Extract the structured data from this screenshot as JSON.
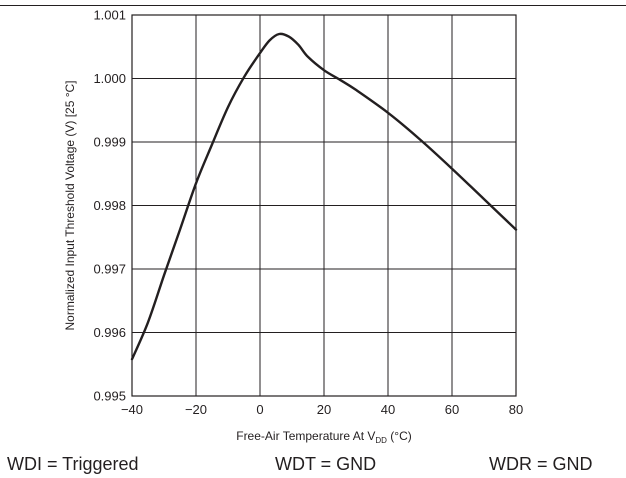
{
  "chart_data": {
    "type": "line",
    "title": "",
    "xlabel_main": "Free-Air Temperature At V",
    "xlabel_sub": "DD",
    "xlabel_unit": " (°C)",
    "ylabel": "Normalized Input Threshold Voltage (V) [25 °C]",
    "xlim": [
      -40,
      80
    ],
    "ylim": [
      0.995,
      1.001
    ],
    "x_ticks": [
      -40,
      -20,
      0,
      20,
      40,
      60,
      80
    ],
    "x_tick_labels": [
      "−40",
      "−20",
      "0",
      "20",
      "40",
      "60",
      "80"
    ],
    "y_ticks": [
      0.995,
      0.996,
      0.997,
      0.998,
      0.999,
      1.0,
      1.001
    ],
    "y_tick_labels": [
      "0.995",
      "0.996",
      "0.997",
      "0.998",
      "0.999",
      "1.000",
      "1.001"
    ],
    "grid": true,
    "series": [
      {
        "x": [
          -40,
          -35,
          -30,
          -25,
          -20,
          -15,
          -10,
          -5,
          0,
          3,
          6,
          9,
          12,
          15,
          20,
          25,
          30,
          40,
          50,
          60,
          70,
          80
        ],
        "y": [
          0.99558,
          0.99616,
          0.9969,
          0.99762,
          0.99835,
          0.99896,
          0.99955,
          1.00002,
          1.0004,
          1.0006,
          1.0007,
          1.00066,
          1.00053,
          1.00034,
          1.00013,
          0.99998,
          0.99982,
          0.99946,
          0.99904,
          0.99858,
          0.9981,
          0.99762
        ]
      }
    ]
  },
  "conditions": {
    "wdi": "WDI = Triggered",
    "wdt": "WDT = GND",
    "wdr": "WDR = GND"
  }
}
